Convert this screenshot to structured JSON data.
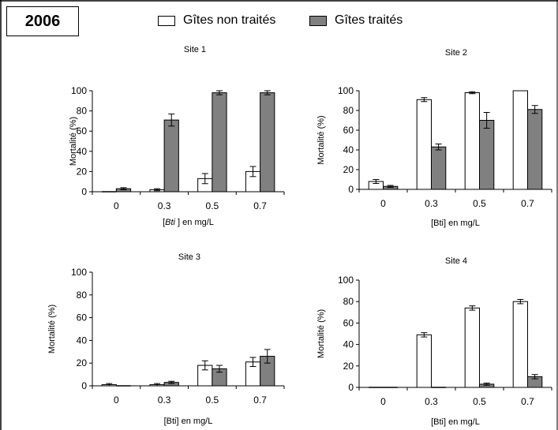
{
  "year_label": "2006",
  "legend": {
    "untreated_label": "Gîtes non traités",
    "treated_label": "Gîtes traités",
    "untreated_color": "#ffffff",
    "treated_color": "#808080"
  },
  "chart_data": [
    {
      "type": "bar",
      "title": "Site 1",
      "xlabel": "",
      "xlabel_parts": [
        "[",
        "Bti",
        " ] en mg/L"
      ],
      "ylabel": "Mortalité (%)",
      "categories": [
        "0",
        "0.3",
        "0.5",
        "0.7"
      ],
      "ylim": [
        0,
        100
      ],
      "yticks": [
        0,
        20,
        40,
        60,
        80,
        100
      ],
      "series": [
        {
          "name": "Gîtes non traités",
          "values": [
            0,
            2,
            13,
            20
          ],
          "errors": [
            0,
            1,
            5,
            5
          ]
        },
        {
          "name": "Gîtes traités",
          "values": [
            3,
            71,
            98,
            98
          ],
          "errors": [
            1,
            6,
            2,
            2
          ]
        }
      ]
    },
    {
      "type": "bar",
      "title": "Site 2",
      "xlabel": "[Bti] en mg/L",
      "ylabel": "Mortalité (%)",
      "categories": [
        "0",
        "0.3",
        "0.5",
        "0.7"
      ],
      "ylim": [
        0,
        100
      ],
      "yticks": [
        0,
        20,
        40,
        60,
        80,
        100
      ],
      "series": [
        {
          "name": "Gîtes non traités",
          "values": [
            8,
            91,
            98,
            100
          ],
          "errors": [
            2,
            2,
            1,
            0
          ]
        },
        {
          "name": "Gîtes traités",
          "values": [
            3,
            43,
            70,
            81
          ],
          "errors": [
            1,
            3,
            8,
            4
          ]
        }
      ]
    },
    {
      "type": "bar",
      "title": "Site 3",
      "xlabel": "[Bti] en mg/L",
      "ylabel": "Mortalité (%)",
      "categories": [
        "0",
        "0.3",
        "0.5",
        "0.7"
      ],
      "ylim": [
        0,
        100
      ],
      "yticks": [
        0,
        20,
        40,
        60,
        80,
        100
      ],
      "series": [
        {
          "name": "Gîtes non traités",
          "values": [
            1,
            1,
            18,
            21
          ],
          "errors": [
            1,
            1,
            4,
            4
          ]
        },
        {
          "name": "Gîtes traités",
          "values": [
            0,
            3,
            15,
            26
          ],
          "errors": [
            0,
            1,
            3,
            6
          ]
        }
      ]
    },
    {
      "type": "bar",
      "title": "Site 4",
      "xlabel": "[Bti] en mg/L",
      "ylabel": "Mortalité (%)",
      "categories": [
        "0",
        "0.3",
        "0.5",
        "0.7"
      ],
      "ylim": [
        0,
        100
      ],
      "yticks": [
        0,
        20,
        40,
        60,
        80,
        100
      ],
      "series": [
        {
          "name": "Gîtes non traités",
          "values": [
            0,
            49,
            74,
            80
          ],
          "errors": [
            0,
            2,
            2,
            2
          ]
        },
        {
          "name": "Gîtes traités",
          "values": [
            0,
            0,
            3,
            10
          ],
          "errors": [
            0,
            0,
            1,
            2
          ]
        }
      ]
    }
  ]
}
